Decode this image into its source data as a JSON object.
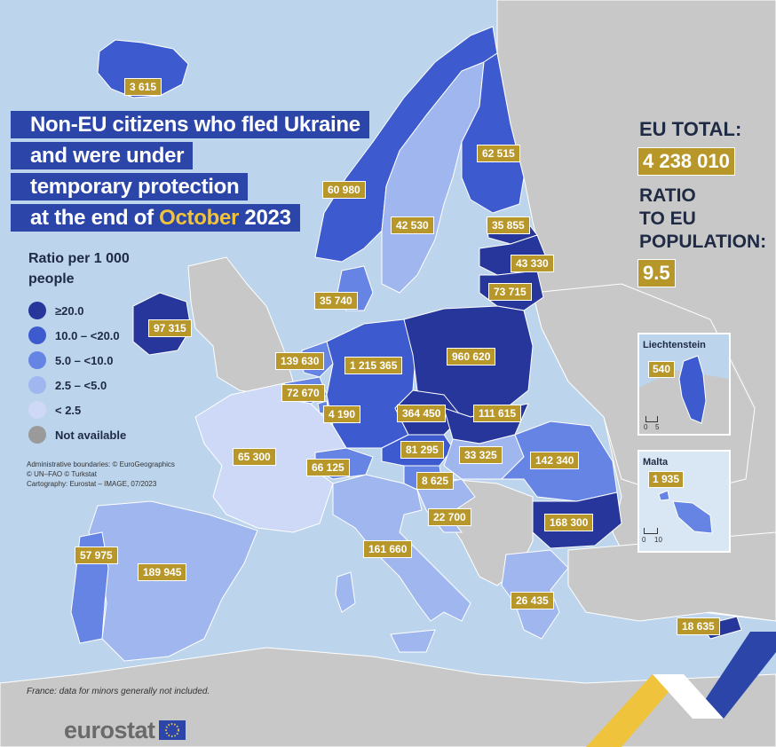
{
  "title": {
    "line1": "Non-EU citizens who fled Ukraine",
    "line2": "and were under",
    "line3": "temporary protection",
    "line4_prefix": "at the end of ",
    "line4_accent": "October",
    "line4_suffix": " 2023"
  },
  "summary": {
    "eu_total_label": "EU TOTAL:",
    "eu_total_value": "4 238 010",
    "ratio_label_1": "RATIO",
    "ratio_label_2": "TO EU",
    "ratio_label_3": "POPULATION:",
    "ratio_value": "9.5"
  },
  "legend": {
    "title_1": "Ratio per 1 000",
    "title_2": "people",
    "classes": [
      {
        "label": "≥20.0",
        "color": "#26369a"
      },
      {
        "label": "10.0 – <20.0",
        "color": "#3d5bce"
      },
      {
        "label": "5.0 – <10.0",
        "color": "#6584e3"
      },
      {
        "label": "2.5 – <5.0",
        "color": "#9fb6ef"
      },
      {
        "label": "< 2.5",
        "color": "#cdd9f6"
      },
      {
        "label": "Not available",
        "color": "#9a9a9a"
      }
    ]
  },
  "credits": {
    "line1": "Administrative boundaries: © EuroGeographics",
    "line2": "© UN–FAO © Turkstat",
    "line3": "Cartography: Eurostat – IMAGE, 07/2023"
  },
  "footnote": "France: data for minors generally not included.",
  "logo": {
    "text": "eurostat"
  },
  "insets": {
    "liechtenstein": {
      "title": "Liechtenstein",
      "value": "540",
      "scale_0": "0",
      "scale_1": "5"
    },
    "malta": {
      "title": "Malta",
      "value": "1 935",
      "scale_0": "0",
      "scale_1": "10"
    }
  },
  "countries": [
    {
      "name_id": "iceland",
      "value": "3 615"
    },
    {
      "name_id": "norway",
      "value": "60 980"
    },
    {
      "name_id": "sweden",
      "value": "42 530"
    },
    {
      "name_id": "finland",
      "value": "62 515"
    },
    {
      "name_id": "estonia",
      "value": "35 855"
    },
    {
      "name_id": "latvia",
      "value": "43 330"
    },
    {
      "name_id": "lithuania",
      "value": "73 715"
    },
    {
      "name_id": "denmark",
      "value": "35 740"
    },
    {
      "name_id": "ireland",
      "value": "97 315"
    },
    {
      "name_id": "netherlands",
      "value": "139 630"
    },
    {
      "name_id": "germany",
      "value": "1 215 365"
    },
    {
      "name_id": "poland",
      "value": "960 620"
    },
    {
      "name_id": "belgium",
      "value": "72 670"
    },
    {
      "name_id": "luxembourg",
      "value": "4 190"
    },
    {
      "name_id": "czechia",
      "value": "364 450"
    },
    {
      "name_id": "slovakia",
      "value": "111 615"
    },
    {
      "name_id": "france",
      "value": "65 300"
    },
    {
      "name_id": "austria",
      "value": "81 295"
    },
    {
      "name_id": "hungary",
      "value": "33 325"
    },
    {
      "name_id": "romania",
      "value": "142 340"
    },
    {
      "name_id": "switzerland",
      "value": "66 125"
    },
    {
      "name_id": "slovenia",
      "value": "8 625"
    },
    {
      "name_id": "croatia",
      "value": "22 700"
    },
    {
      "name_id": "bulgaria",
      "value": "168 300"
    },
    {
      "name_id": "portugal",
      "value": "57 975"
    },
    {
      "name_id": "spain",
      "value": "189 945"
    },
    {
      "name_id": "italy",
      "value": "161 660"
    },
    {
      "name_id": "greece",
      "value": "26 435"
    },
    {
      "name_id": "cyprus",
      "value": "18 635"
    }
  ]
}
